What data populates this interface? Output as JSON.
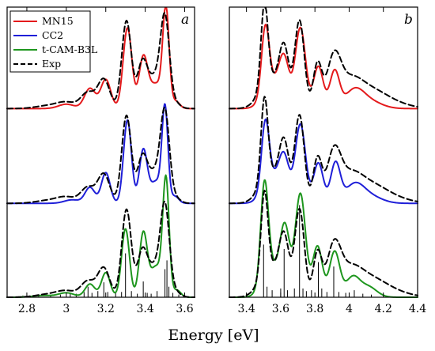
{
  "xlabel": "Energy [eV]",
  "colors": {
    "MN15": "#e41a1c",
    "CC2": "#1f1fd8",
    "t-CAM-B3L": "#1e961e",
    "Exp": "#000000"
  },
  "legend": {
    "entries": [
      {
        "name": "MN15",
        "color": "#e41a1c",
        "style": "solid"
      },
      {
        "name": "CC2",
        "color": "#1f1fd8",
        "style": "solid"
      },
      {
        "name": "t-CAM-B3L",
        "color": "#1e961e",
        "style": "solid"
      },
      {
        "name": "Exp",
        "color": "#000000",
        "style": "dashed"
      }
    ],
    "placement": "top-left"
  },
  "chart_data": [
    {
      "type": "line",
      "panel_label": "a",
      "xlabel": "Energy [eV]",
      "xlim": [
        2.7,
        3.65
      ],
      "ylim": [
        0,
        3.3
      ],
      "xticks": [
        2.8,
        3,
        3.2,
        3.4,
        3.6
      ],
      "xtick_labels": [
        "2.8",
        "3",
        "3.2",
        "3.4",
        "3.6"
      ],
      "y_ticks_shown": false,
      "offsets": {
        "MN15": 2.15,
        "CC2": 1.07,
        "t-CAM-B3L": 0.0
      },
      "series": [
        {
          "name": "MN15",
          "color": "#e41a1c",
          "peaks": [
            [
              3.0,
              0.05,
              0.04
            ],
            [
              3.12,
              0.23,
              0.028
            ],
            [
              3.2,
              0.33,
              0.025
            ],
            [
              3.31,
              0.92,
              0.022
            ],
            [
              3.39,
              0.56,
              0.022
            ],
            [
              3.455,
              0.28,
              0.035
            ],
            [
              3.505,
              1.08,
              0.016
            ],
            [
              3.555,
              0.08,
              0.02
            ]
          ]
        },
        {
          "name": "CC2",
          "color": "#1f1fd8",
          "peaks": [
            [
              3.03,
              0.04,
              0.04
            ],
            [
              3.12,
              0.18,
              0.025
            ],
            [
              3.2,
              0.35,
              0.022
            ],
            [
              3.31,
              0.95,
              0.02
            ],
            [
              3.39,
              0.6,
              0.02
            ],
            [
              3.455,
              0.25,
              0.03
            ],
            [
              3.5,
              1.05,
              0.015
            ],
            [
              3.55,
              0.08,
              0.02
            ]
          ]
        },
        {
          "name": "t-CAM-B3L",
          "color": "#1e961e",
          "peaks": [
            [
              2.88,
              0.02,
              0.05
            ],
            [
              3.0,
              0.05,
              0.04
            ],
            [
              3.12,
              0.15,
              0.025
            ],
            [
              3.2,
              0.28,
              0.022
            ],
            [
              3.3,
              0.78,
              0.02
            ],
            [
              3.39,
              0.72,
              0.02
            ],
            [
              3.455,
              0.35,
              0.03
            ],
            [
              3.505,
              1.3,
              0.016
            ],
            [
              3.56,
              0.08,
              0.02
            ]
          ]
        },
        {
          "name": "Exp",
          "color": "#000000",
          "style": "dashed",
          "peaks": [
            [
              2.9,
              0.03,
              0.06
            ],
            [
              3.0,
              0.07,
              0.05
            ],
            [
              3.11,
              0.18,
              0.035
            ],
            [
              3.19,
              0.33,
              0.03
            ],
            [
              3.305,
              1.0,
              0.024
            ],
            [
              3.385,
              0.5,
              0.025
            ],
            [
              3.45,
              0.35,
              0.035
            ],
            [
              3.5,
              0.93,
              0.022
            ],
            [
              3.54,
              0.08,
              0.03
            ]
          ]
        }
      ],
      "sticks": [
        [
          2.78,
          0.02
        ],
        [
          2.86,
          0.03
        ],
        [
          2.92,
          0.02
        ],
        [
          2.97,
          0.03
        ],
        [
          3.02,
          0.05
        ],
        [
          3.05,
          0.04
        ],
        [
          3.09,
          0.06
        ],
        [
          3.11,
          0.12
        ],
        [
          3.13,
          0.05
        ],
        [
          3.16,
          0.07
        ],
        [
          3.19,
          0.17
        ],
        [
          3.21,
          0.06
        ],
        [
          3.25,
          0.05
        ],
        [
          3.28,
          0.06
        ],
        [
          3.3,
          0.5
        ],
        [
          3.33,
          0.07
        ],
        [
          3.36,
          0.04
        ],
        [
          3.39,
          0.18
        ],
        [
          3.41,
          0.05
        ],
        [
          3.43,
          0.04
        ],
        [
          3.46,
          0.07
        ],
        [
          3.5,
          0.32
        ],
        [
          3.51,
          0.42
        ],
        [
          3.52,
          0.12
        ],
        [
          3.54,
          0.05
        ],
        [
          3.57,
          0.03
        ]
      ]
    },
    {
      "type": "line",
      "panel_label": "b",
      "xlabel": "Energy [eV]",
      "xlim": [
        3.3,
        4.4
      ],
      "ylim": [
        0,
        3.3
      ],
      "xticks": [
        3.4,
        3.6,
        3.8,
        4,
        4.2,
        4.4
      ],
      "xtick_labels": [
        "3.4",
        "3.6",
        "3.8",
        "4",
        "4.2",
        "4.4"
      ],
      "y_ticks_shown": false,
      "offsets": {
        "MN15": 2.15,
        "CC2": 1.07,
        "t-CAM-B3L": 0.0
      },
      "series": [
        {
          "name": "MN15",
          "color": "#e41a1c",
          "peaks": [
            [
              3.51,
              0.72,
              0.022
            ],
            [
              3.545,
              0.3,
              0.05
            ],
            [
              3.62,
              0.52,
              0.03
            ],
            [
              3.715,
              0.92,
              0.03
            ],
            [
              3.82,
              0.48,
              0.028
            ],
            [
              3.915,
              0.42,
              0.028
            ],
            [
              4.03,
              0.2,
              0.055
            ],
            [
              4.12,
              0.08,
              0.07
            ]
          ]
        },
        {
          "name": "CC2",
          "color": "#1f1fd8",
          "peaks": [
            [
              3.51,
              0.72,
              0.022
            ],
            [
              3.545,
              0.3,
              0.05
            ],
            [
              3.62,
              0.48,
              0.03
            ],
            [
              3.715,
              0.9,
              0.03
            ],
            [
              3.82,
              0.46,
              0.028
            ],
            [
              3.92,
              0.45,
              0.028
            ],
            [
              4.03,
              0.2,
              0.055
            ],
            [
              4.12,
              0.08,
              0.07
            ]
          ]
        },
        {
          "name": "t-CAM-B3L",
          "color": "#1e961e",
          "peaks": [
            [
              3.505,
              1.08,
              0.022
            ],
            [
              3.545,
              0.35,
              0.05
            ],
            [
              3.625,
              0.74,
              0.028
            ],
            [
              3.715,
              1.18,
              0.03
            ],
            [
              3.815,
              0.58,
              0.028
            ],
            [
              3.915,
              0.52,
              0.03
            ],
            [
              4.02,
              0.22,
              0.04
            ],
            [
              4.11,
              0.12,
              0.05
            ]
          ]
        },
        {
          "name": "Exp",
          "color": "#000000",
          "style": "dashed",
          "peaks": [
            [
              3.505,
              0.92,
              0.02
            ],
            [
              3.54,
              0.35,
              0.06
            ],
            [
              3.62,
              0.6,
              0.028
            ],
            [
              3.71,
              1.0,
              0.028
            ],
            [
              3.815,
              0.5,
              0.025
            ],
            [
              3.91,
              0.52,
              0.04
            ],
            [
              4.0,
              0.28,
              0.07
            ],
            [
              4.12,
              0.18,
              0.09
            ],
            [
              4.25,
              0.06,
              0.1
            ]
          ]
        }
      ],
      "sticks": [
        [
          3.5,
          0.6
        ],
        [
          3.52,
          0.12
        ],
        [
          3.55,
          0.08
        ],
        [
          3.6,
          0.1
        ],
        [
          3.62,
          0.55
        ],
        [
          3.64,
          0.08
        ],
        [
          3.68,
          0.1
        ],
        [
          3.71,
          1.05
        ],
        [
          3.73,
          0.1
        ],
        [
          3.75,
          0.07
        ],
        [
          3.78,
          0.08
        ],
        [
          3.82,
          0.4
        ],
        [
          3.84,
          0.1
        ],
        [
          3.87,
          0.06
        ],
        [
          3.91,
          0.35
        ],
        [
          3.94,
          0.06
        ],
        [
          3.98,
          0.05
        ],
        [
          4.03,
          0.08
        ],
        [
          4.08,
          0.04
        ],
        [
          4.13,
          0.03
        ]
      ]
    }
  ]
}
